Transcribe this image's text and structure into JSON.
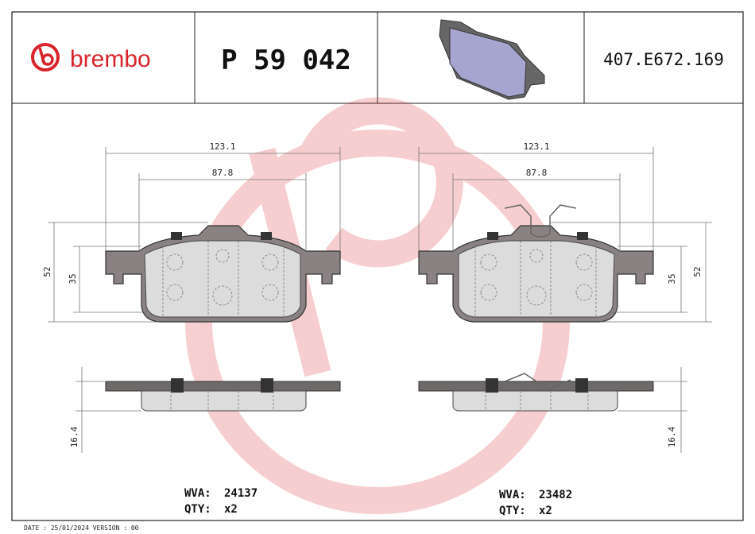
{
  "header": {
    "brand": "brembo",
    "part_number": "P 59 042",
    "code": "407.E672.169"
  },
  "left_pad": {
    "width_outer": "123.1",
    "width_inner": "87.8",
    "height_outer": "52",
    "height_inner": "35",
    "thickness": "16.4",
    "wva_label": "WVA:",
    "wva": "24137",
    "qty_label": "QTY:",
    "qty": "x2"
  },
  "right_pad": {
    "width_outer": "123.1",
    "width_inner": "87.8",
    "height_outer": "52",
    "height_inner": "35",
    "thickness": "16.4",
    "wva_label": "WVA:",
    "wva": "23482",
    "qty_label": "QTY:",
    "qty": "x2"
  },
  "footer": {
    "date": "DATE : 25/01/2024 VERSION : 00"
  }
}
